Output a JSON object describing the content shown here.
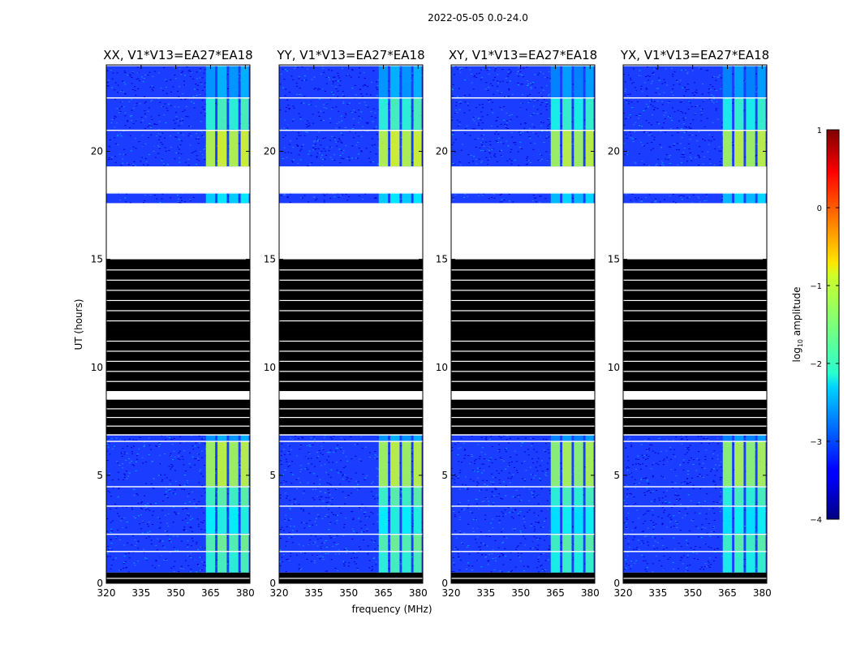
{
  "suptitle": "2022-05-05 0.0-24.0",
  "chart_data": {
    "type": "heatmap",
    "xlabel": "frequency (MHz)",
    "ylabel": "UT (hours)",
    "xlim": [
      320,
      382
    ],
    "ylim": [
      0,
      24
    ],
    "x_ticks": [
      320,
      335,
      350,
      365,
      380
    ],
    "y_ticks": [
      0,
      5,
      10,
      15,
      20
    ],
    "colorbar": {
      "label": "log10 amplitude",
      "label_main": "log",
      "label_sub": "10",
      "label_rest": " amplitude",
      "range": [
        -4,
        1
      ],
      "ticks": [
        1,
        0,
        -1,
        -2,
        -3,
        -4
      ],
      "tick_labels": [
        "1",
        "0",
        "−1",
        "−2",
        "−3",
        "−4"
      ],
      "colormap": "jet"
    },
    "panels": [
      {
        "title": "XX, V1*V13=EA27*EA18"
      },
      {
        "title": "YY, V1*V13=EA27*EA18"
      },
      {
        "title": "XY, V1*V13=EA27*EA18"
      },
      {
        "title": "YX, V1*V13=EA27*EA18"
      }
    ],
    "rfi_channels_mhz": [
      [
        363,
        367
      ],
      [
        368,
        372
      ],
      [
        373,
        377
      ],
      [
        378,
        381.5
      ]
    ],
    "time_segments": [
      {
        "from": 0.0,
        "to": 0.5,
        "state": "flagged-black"
      },
      {
        "from": 0.5,
        "to": 1.5,
        "state": "data",
        "rfi_log_amp": -1.9
      },
      {
        "from": 1.5,
        "to": 2.3,
        "state": "data",
        "rfi_log_amp": -1.7
      },
      {
        "from": 2.3,
        "to": 3.6,
        "state": "data",
        "rfi_log_amp": -2.1
      },
      {
        "from": 3.6,
        "to": 4.5,
        "state": "data",
        "rfi_log_amp": -1.8
      },
      {
        "from": 4.5,
        "to": 6.6,
        "state": "data",
        "rfi_log_amp": -1.3
      },
      {
        "from": 6.6,
        "to": 6.9,
        "state": "data",
        "rfi_log_amp": -2.6
      },
      {
        "from": 6.9,
        "to": 8.5,
        "state": "flagged-black"
      },
      {
        "from": 8.5,
        "to": 8.9,
        "state": "blank"
      },
      {
        "from": 8.9,
        "to": 11.7,
        "state": "flagged-black"
      },
      {
        "from": 11.7,
        "to": 15.0,
        "state": "flagged-black"
      },
      {
        "from": 15.0,
        "to": 17.6,
        "state": "blank"
      },
      {
        "from": 17.6,
        "to": 18.1,
        "state": "data",
        "rfi_log_amp": -2.3
      },
      {
        "from": 18.1,
        "to": 19.3,
        "state": "blank"
      },
      {
        "from": 19.3,
        "to": 21.0,
        "state": "data",
        "rfi_log_amp": -1.2
      },
      {
        "from": 21.0,
        "to": 22.5,
        "state": "data",
        "rfi_log_amp": -1.9
      },
      {
        "from": 22.5,
        "to": 24.0,
        "state": "data",
        "rfi_log_amp": -2.6
      }
    ]
  }
}
